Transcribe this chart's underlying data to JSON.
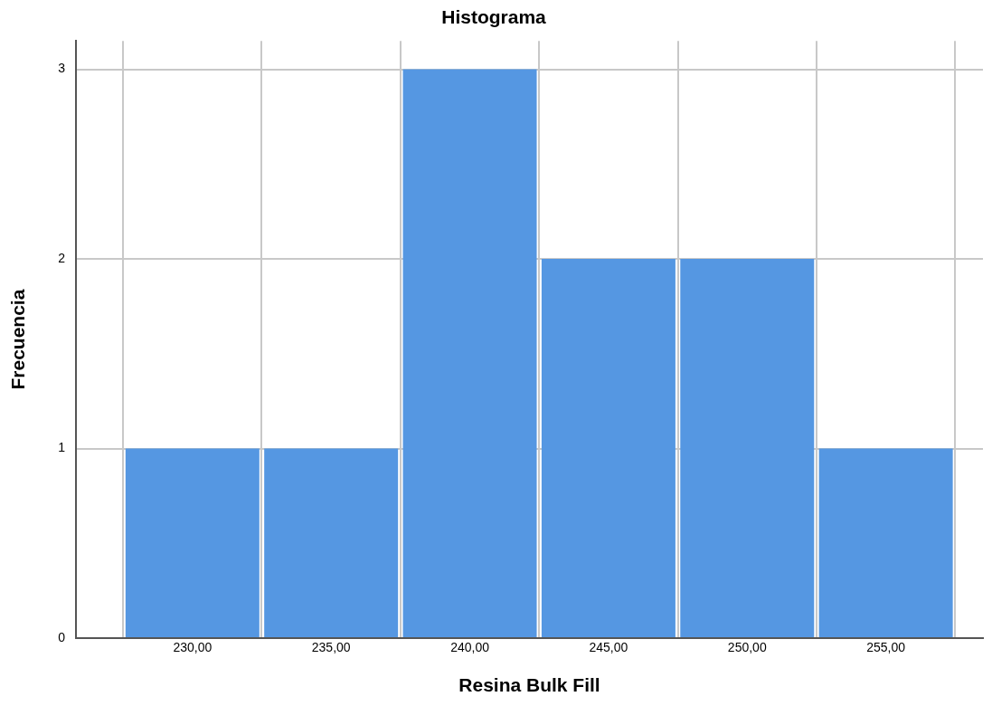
{
  "chart_data": {
    "type": "histogram",
    "title": "Histograma",
    "xlabel": "Resina Bulk Fill",
    "ylabel": "Frecuencia",
    "bins": [
      227.5,
      232.5,
      237.5,
      242.5,
      247.5,
      252.5,
      257.5
    ],
    "values": [
      1,
      1,
      3,
      2,
      2,
      1
    ],
    "color": "#5597e2",
    "xlim": [
      225.8,
      258.5
    ],
    "xticks": [
      {
        "value": 230,
        "label": "230,00"
      },
      {
        "value": 235,
        "label": "235,00"
      },
      {
        "value": 240,
        "label": "240,00"
      },
      {
        "value": 245,
        "label": "245,00"
      },
      {
        "value": 250,
        "label": "250,00"
      },
      {
        "value": 255,
        "label": "255,00"
      }
    ],
    "ylim": [
      0,
      3.15
    ],
    "yticks": [
      0,
      1,
      2,
      3
    ],
    "grid": true
  }
}
